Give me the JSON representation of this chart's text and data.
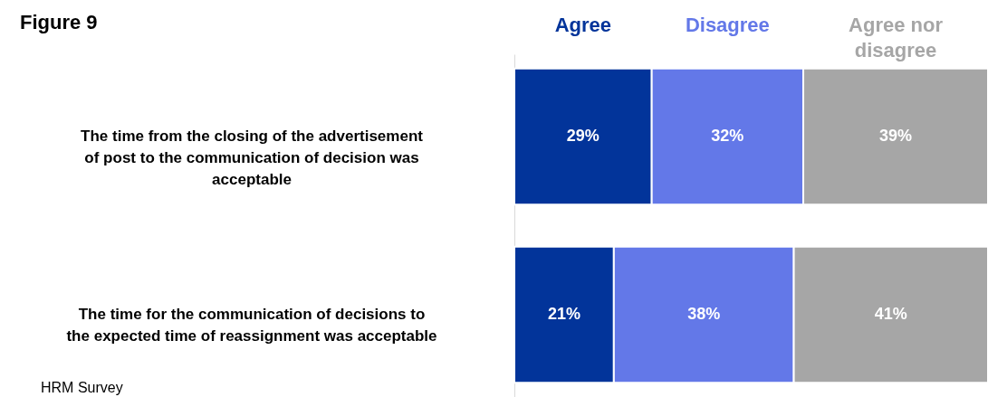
{
  "chart_data": {
    "type": "bar",
    "orientation": "horizontal",
    "stacked": true,
    "title": "Figure 9",
    "categories": [
      "The time from the closing of the advertisement of post to the communication of decision was acceptable",
      "The time for the communication of decisions to the expected time of reassignment was acceptable"
    ],
    "series": [
      {
        "name": "Agree",
        "color": "#02349a",
        "values": [
          29,
          21
        ],
        "value_labels": [
          "29%",
          "21%"
        ]
      },
      {
        "name": "Disagree",
        "color": "#6378e8",
        "values": [
          32,
          38
        ],
        "value_labels": [
          "32%",
          "38%"
        ]
      },
      {
        "name": "Agree nor disagree",
        "color": "#a6a6a6",
        "values": [
          39,
          41
        ],
        "value_labels": [
          "39%",
          "41%"
        ]
      }
    ],
    "xlim": [
      0,
      100
    ],
    "tick_labels": "y",
    "legend": "top",
    "annotations": [
      "HRM Survey"
    ]
  }
}
